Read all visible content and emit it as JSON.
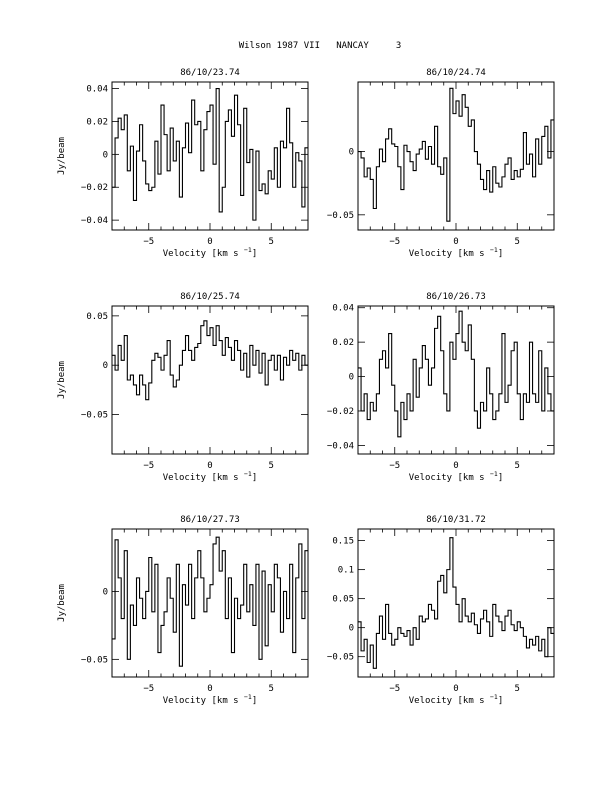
{
  "page": {
    "title": "Wilson 1987 VII   NANCAY     3"
  },
  "axes_text": {
    "xlabel_main": "Velocity [km s",
    "xlabel_sup": "−1",
    "xlabel_end": "]",
    "ylabel": "Jy/beam"
  },
  "chart_data": [
    {
      "type": "line",
      "step": true,
      "title": "86/10/23.74",
      "xlabel": "Velocity [km s−1]",
      "ylabel": "Jy/beam",
      "xlim": [
        -8,
        8
      ],
      "ylim": [
        -0.046,
        0.044
      ],
      "xticks": [
        -5,
        0,
        5
      ],
      "xtick_labels": [
        "−5",
        "0",
        "5"
      ],
      "yticks": [
        -0.04,
        -0.02,
        0,
        0.02,
        0.04
      ],
      "ytick_labels": [
        "−0.04",
        "−0.02",
        "0",
        "0.02",
        "0.04"
      ],
      "series": [
        {
          "x_start": -8,
          "x_step": 0.25,
          "values": [
            -0.02,
            0.01,
            0.022,
            0.015,
            0.024,
            -0.01,
            0.005,
            -0.028,
            0.002,
            0.018,
            -0.004,
            -0.018,
            -0.022,
            -0.02,
            0.008,
            -0.012,
            0.03,
            0.012,
            -0.01,
            0.016,
            -0.004,
            0.008,
            -0.026,
            0.004,
            0.019,
            0.001,
            0.033,
            0.018,
            0.02,
            -0.01,
            0.015,
            0.026,
            0.03,
            -0.006,
            0.04,
            -0.035,
            -0.02,
            0.02,
            0.027,
            0.011,
            0.036,
            0.018,
            -0.025,
            0.028,
            -0.005,
            0.003,
            -0.04,
            0.002,
            -0.022,
            -0.018,
            -0.024,
            -0.01,
            -0.015,
            0.004,
            -0.02,
            0.008,
            0.004,
            0.028,
            0.007,
            -0.02,
            0.001,
            -0.004,
            -0.032,
            0.004
          ]
        }
      ]
    },
    {
      "type": "line",
      "step": true,
      "title": "86/10/24.74",
      "xlabel": "Velocity [km s−1]",
      "ylabel": "Jy/beam",
      "xlim": [
        -8,
        8
      ],
      "ylim": [
        -0.062,
        0.055
      ],
      "xticks": [
        -5,
        0,
        5
      ],
      "xtick_labels": [
        "−5",
        "0",
        "5"
      ],
      "yticks": [
        -0.05,
        0
      ],
      "ytick_labels": [
        "−0.05",
        "0"
      ],
      "series": [
        {
          "x_start": -8,
          "x_step": 0.25,
          "values": [
            0.0,
            -0.005,
            -0.02,
            -0.013,
            -0.022,
            -0.045,
            -0.012,
            0.002,
            -0.008,
            0.01,
            0.018,
            0.006,
            0.004,
            -0.012,
            -0.03,
            0.005,
            0.0,
            -0.008,
            -0.015,
            -0.002,
            0.002,
            0.008,
            -0.006,
            0.004,
            -0.01,
            0.02,
            -0.012,
            -0.018,
            -0.005,
            -0.055,
            0.05,
            0.03,
            0.04,
            0.028,
            0.045,
            0.035,
            0.02,
            0.025,
            0.0,
            -0.01,
            -0.022,
            -0.03,
            -0.015,
            -0.032,
            -0.012,
            -0.025,
            -0.028,
            -0.02,
            -0.01,
            -0.005,
            -0.022,
            -0.015,
            -0.02,
            -0.014,
            0.015,
            -0.01,
            -0.002,
            -0.02,
            0.01,
            -0.01,
            0.012,
            0.02,
            -0.005,
            0.025
          ]
        }
      ]
    },
    {
      "type": "line",
      "step": true,
      "title": "86/10/25.74",
      "xlabel": "Velocity [km s−1]",
      "ylabel": "Jy/beam",
      "xlim": [
        -8,
        8
      ],
      "ylim": [
        -0.09,
        0.06
      ],
      "xticks": [
        -5,
        0,
        5
      ],
      "xtick_labels": [
        "−5",
        "0",
        "5"
      ],
      "yticks": [
        -0.05,
        0,
        0.05
      ],
      "ytick_labels": [
        "−0.05",
        "0",
        "0.05"
      ],
      "series": [
        {
          "x_start": -8,
          "x_step": 0.25,
          "values": [
            0.01,
            -0.005,
            0.02,
            0.005,
            0.03,
            -0.015,
            -0.01,
            -0.02,
            -0.03,
            -0.01,
            -0.02,
            -0.035,
            -0.018,
            0.005,
            0.012,
            0.008,
            -0.005,
            0.01,
            0.025,
            -0.01,
            -0.022,
            -0.015,
            0.0,
            0.015,
            0.03,
            0.015,
            0.005,
            0.018,
            0.022,
            0.04,
            0.045,
            0.03,
            0.038,
            0.02,
            0.04,
            0.025,
            0.01,
            0.028,
            0.018,
            0.005,
            0.025,
            0.015,
            -0.005,
            0.012,
            -0.012,
            0.02,
            0.0,
            0.015,
            -0.008,
            0.012,
            -0.02,
            0.005,
            0.01,
            -0.005,
            0.01,
            -0.015,
            0.008,
            0.0,
            0.015,
            0.005,
            0.012,
            -0.005,
            0.01,
            0.0
          ]
        }
      ]
    },
    {
      "type": "line",
      "step": true,
      "title": "86/10/26.73",
      "xlabel": "Velocity [km s−1]",
      "ylabel": "Jy/beam",
      "xlim": [
        -8,
        8
      ],
      "ylim": [
        -0.045,
        0.041
      ],
      "xticks": [
        -5,
        0,
        5
      ],
      "xtick_labels": [
        "−5",
        "0",
        "5"
      ],
      "yticks": [
        -0.04,
        -0.02,
        0,
        0.02,
        0.04
      ],
      "ytick_labels": [
        "−0.04",
        "−0.02",
        "0",
        "0.02",
        "0.04"
      ],
      "series": [
        {
          "x_start": -8,
          "x_step": 0.25,
          "values": [
            0.005,
            -0.02,
            -0.01,
            -0.025,
            -0.015,
            -0.02,
            -0.01,
            0.01,
            0.015,
            0.005,
            0.025,
            -0.005,
            -0.02,
            -0.035,
            -0.015,
            -0.025,
            -0.01,
            -0.02,
            0.01,
            -0.012,
            0.005,
            0.018,
            0.01,
            -0.005,
            0.005,
            0.028,
            0.035,
            0.015,
            -0.01,
            -0.02,
            0.02,
            0.01,
            0.025,
            0.038,
            0.02,
            0.015,
            0.03,
            0.01,
            -0.02,
            -0.03,
            -0.015,
            -0.02,
            0.005,
            -0.01,
            -0.025,
            -0.02,
            -0.01,
            0.025,
            -0.015,
            -0.005,
            0.015,
            0.02,
            -0.01,
            -0.025,
            -0.01,
            -0.015,
            0.02,
            -0.01,
            -0.015,
            0.015,
            -0.02,
            0.005,
            -0.01,
            -0.02
          ]
        }
      ]
    },
    {
      "type": "line",
      "step": true,
      "title": "86/10/27.73",
      "xlabel": "Velocity [km s−1]",
      "ylabel": "Jy/beam",
      "xlim": [
        -8,
        8
      ],
      "ylim": [
        -0.063,
        0.046
      ],
      "xticks": [
        -5,
        0,
        5
      ],
      "xtick_labels": [
        "−5",
        "0",
        "5"
      ],
      "yticks": [
        -0.05,
        0
      ],
      "ytick_labels": [
        "−0.05",
        "0"
      ],
      "series": [
        {
          "x_start": -8,
          "x_step": 0.25,
          "values": [
            -0.035,
            0.038,
            0.01,
            -0.02,
            0.03,
            -0.05,
            -0.01,
            -0.025,
            0.01,
            -0.005,
            -0.02,
            0.0,
            0.025,
            -0.015,
            0.02,
            -0.045,
            -0.025,
            -0.015,
            0.01,
            -0.005,
            -0.03,
            0.02,
            -0.055,
            0.005,
            -0.01,
            0.02,
            -0.02,
            0.01,
            0.03,
            0.01,
            -0.015,
            -0.005,
            0.005,
            0.035,
            0.04,
            0.015,
            0.03,
            -0.02,
            0.01,
            -0.045,
            -0.005,
            -0.02,
            -0.01,
            0.02,
            -0.015,
            0.005,
            -0.025,
            0.02,
            -0.05,
            0.015,
            -0.04,
            0.005,
            -0.015,
            0.02,
            0.01,
            -0.03,
            0.0,
            -0.02,
            0.02,
            -0.045,
            0.01,
            0.035,
            -0.02,
            0.03
          ]
        }
      ]
    },
    {
      "type": "line",
      "step": true,
      "title": "86/10/31.72",
      "xlabel": "Velocity [km s−1]",
      "ylabel": "Jy/beam",
      "xlim": [
        -8,
        8
      ],
      "ylim": [
        -0.085,
        0.17
      ],
      "xticks": [
        -5,
        0,
        5
      ],
      "xtick_labels": [
        "−5",
        "0",
        "5"
      ],
      "yticks": [
        -0.05,
        0,
        0.05,
        0.1,
        0.15
      ],
      "ytick_labels": [
        "−0.05",
        "0",
        "0.05",
        "0.1",
        "0.15"
      ],
      "series": [
        {
          "x_start": -8,
          "x_step": 0.25,
          "values": [
            0.01,
            -0.04,
            -0.02,
            -0.06,
            -0.03,
            -0.07,
            -0.01,
            0.02,
            -0.02,
            0.04,
            -0.01,
            -0.03,
            -0.02,
            0.0,
            -0.01,
            -0.015,
            -0.005,
            -0.03,
            0.0,
            -0.02,
            0.02,
            0.01,
            0.015,
            0.04,
            0.03,
            0.015,
            0.08,
            0.09,
            0.06,
            0.1,
            0.155,
            0.07,
            0.04,
            0.01,
            0.05,
            0.02,
            0.01,
            0.025,
            0.005,
            -0.01,
            0.015,
            0.03,
            0.01,
            -0.015,
            0.04,
            0.02,
            0.01,
            -0.005,
            0.02,
            0.03,
            0.005,
            -0.005,
            0.01,
            0.0,
            -0.015,
            -0.035,
            -0.02,
            -0.03,
            -0.015,
            -0.04,
            -0.02,
            -0.05,
            0.0,
            -0.01
          ]
        }
      ]
    }
  ]
}
